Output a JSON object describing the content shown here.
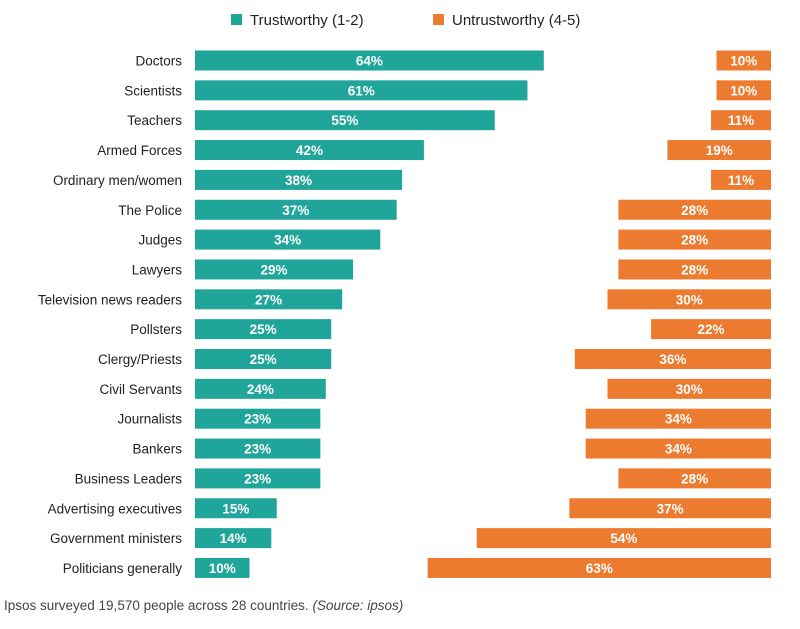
{
  "chart_data": {
    "type": "bar",
    "categories": [
      "Doctors",
      "Scientists",
      "Teachers",
      "Armed Forces",
      "Ordinary men/women",
      "The Police",
      "Judges",
      "Lawyers",
      "Television news readers",
      "Pollsters",
      "Clergy/Priests",
      "Civil Servants",
      "Journalists",
      "Bankers",
      "Business Leaders",
      "Advertising executives",
      "Government ministers",
      "Politicians generally"
    ],
    "series": [
      {
        "name": "Trustworthy (1-2)",
        "color": "#1fa59a",
        "values": [
          64,
          61,
          55,
          42,
          38,
          37,
          34,
          29,
          27,
          25,
          25,
          24,
          23,
          23,
          23,
          15,
          14,
          10
        ]
      },
      {
        "name": "Untrustworthy (4-5)",
        "color": "#ec7b2f",
        "values": [
          10,
          10,
          11,
          19,
          11,
          28,
          28,
          28,
          30,
          22,
          36,
          30,
          34,
          34,
          28,
          37,
          54,
          63
        ]
      }
    ],
    "value_suffix": "%",
    "legend_position": "top-center",
    "grid": false
  },
  "caption": {
    "text": "Ipsos surveyed 19,570 people across 28 countries.",
    "source": "(Source: ipsos)"
  }
}
